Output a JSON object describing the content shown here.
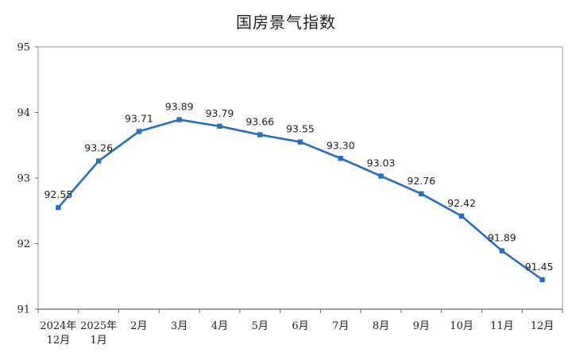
{
  "chart_data": {
    "type": "line",
    "title": "国房景气指数",
    "categories": [
      [
        "2024年",
        "12月"
      ],
      [
        "2025年",
        "1月"
      ],
      [
        "2月"
      ],
      [
        "3月"
      ],
      [
        "4月"
      ],
      [
        "5月"
      ],
      [
        "6月"
      ],
      [
        "7月"
      ],
      [
        "8月"
      ],
      [
        "9月"
      ],
      [
        "10月"
      ],
      [
        "11月"
      ],
      [
        "12月"
      ]
    ],
    "values": [
      92.55,
      93.26,
      93.71,
      93.89,
      93.79,
      93.66,
      93.55,
      93.3,
      93.03,
      92.76,
      92.42,
      91.89,
      91.45
    ],
    "data_labels": [
      "92.55",
      "93.26",
      "93.71",
      "93.89",
      "93.79",
      "93.66",
      "93.55",
      "93.30",
      "93.03",
      "92.76",
      "92.42",
      "91.89",
      "91.45"
    ],
    "yticks": [
      "91",
      "92",
      "93",
      "94",
      "95"
    ],
    "ylim": [
      91,
      95
    ],
    "xlabel": "",
    "ylabel": "",
    "grid": false,
    "legend": "none",
    "colors": {
      "line": "#2a6dbb",
      "marker": "#2a6dbb",
      "axis": "#6b6b6b",
      "frame": "#9a9a9a"
    }
  }
}
